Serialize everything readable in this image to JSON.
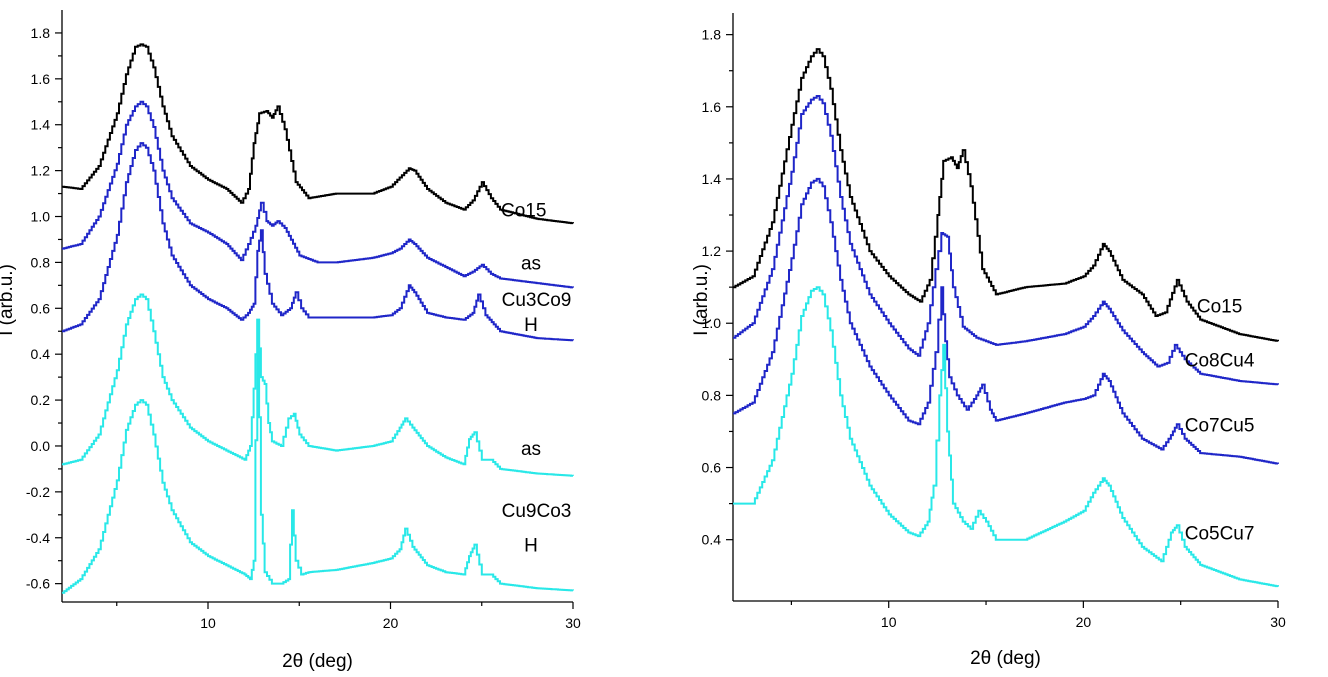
{
  "chart_data": [
    {
      "type": "line",
      "xlabel": "2θ (deg)",
      "ylabel": "I (arb.u.)",
      "xlim": [
        2,
        30
      ],
      "ylim": [
        -0.68,
        1.9
      ],
      "x_ticks": [
        "10",
        "20",
        "30"
      ],
      "y_ticks": [
        "-0.6",
        "-0.4",
        "-0.2",
        "0.0",
        "0.2",
        "0.4",
        "0.6",
        "0.8",
        "1.0",
        "1.2",
        "1.4",
        "1.6",
        "1.8"
      ],
      "grid": false,
      "annotations": [
        {
          "text": "Co15",
          "x": 27.3,
          "y": 1.0
        },
        {
          "text": "as",
          "x": 27.7,
          "y": 0.77
        },
        {
          "text": "Cu3Co9",
          "x": 28.0,
          "y": 0.61
        },
        {
          "text": "H",
          "x": 27.7,
          "y": 0.5
        },
        {
          "text": "as",
          "x": 27.7,
          "y": -0.04
        },
        {
          "text": "Cu9Co3",
          "x": 28.0,
          "y": -0.31
        },
        {
          "text": "H",
          "x": 27.7,
          "y": -0.46
        }
      ],
      "series": [
        {
          "color": "#000000",
          "x": [
            2,
            3,
            4,
            5,
            5.5,
            6,
            6.3,
            6.6,
            7,
            7.5,
            8,
            9,
            10,
            11,
            11.8,
            12.2,
            12.5,
            12.8,
            13.2,
            13.5,
            13.8,
            14.2,
            14.8,
            15.5,
            17,
            19,
            20,
            20.5,
            21,
            21.3,
            22,
            23,
            24,
            24.5,
            25,
            25.5,
            26,
            28,
            30
          ],
          "values": [
            1.13,
            1.12,
            1.22,
            1.45,
            1.62,
            1.74,
            1.75,
            1.74,
            1.65,
            1.48,
            1.35,
            1.22,
            1.16,
            1.12,
            1.06,
            1.12,
            1.32,
            1.45,
            1.46,
            1.43,
            1.48,
            1.38,
            1.15,
            1.08,
            1.1,
            1.1,
            1.13,
            1.17,
            1.21,
            1.2,
            1.12,
            1.06,
            1.03,
            1.07,
            1.15,
            1.08,
            1.03,
            0.99,
            0.97
          ]
        },
        {
          "color": "#1f26c8",
          "x": [
            2,
            3,
            4,
            5,
            5.5,
            6,
            6.3,
            6.6,
            7,
            7.5,
            8,
            9,
            10,
            11,
            11.8,
            12.2,
            12.6,
            12.9,
            13.2,
            13.5,
            13.8,
            14.2,
            15,
            16,
            17,
            19,
            20,
            20.5,
            21,
            21.3,
            22,
            23,
            24,
            24.5,
            25,
            25.5,
            26,
            28,
            30
          ],
          "values": [
            0.86,
            0.88,
            1.0,
            1.23,
            1.4,
            1.48,
            1.5,
            1.48,
            1.39,
            1.2,
            1.08,
            0.97,
            0.93,
            0.88,
            0.81,
            0.88,
            0.96,
            1.06,
            0.98,
            0.96,
            0.98,
            0.95,
            0.83,
            0.8,
            0.8,
            0.82,
            0.84,
            0.86,
            0.9,
            0.88,
            0.82,
            0.78,
            0.74,
            0.76,
            0.79,
            0.75,
            0.73,
            0.71,
            0.69
          ]
        },
        {
          "color": "#1f26c8",
          "x": [
            2,
            3,
            4,
            5,
            5.5,
            6,
            6.3,
            6.6,
            7,
            7.5,
            8,
            9,
            10,
            11,
            11.8,
            12.2,
            12.5,
            12.7,
            12.9,
            13.1,
            13.5,
            14,
            14.5,
            14.8,
            15.1,
            15.5,
            17,
            19,
            20,
            20.5,
            21,
            21.3,
            22,
            23,
            24,
            24.5,
            24.8,
            25.2,
            26,
            28,
            30
          ],
          "values": [
            0.5,
            0.53,
            0.64,
            0.92,
            1.15,
            1.29,
            1.32,
            1.3,
            1.2,
            0.97,
            0.83,
            0.7,
            0.64,
            0.6,
            0.55,
            0.58,
            0.62,
            0.85,
            0.94,
            0.75,
            0.62,
            0.57,
            0.6,
            0.67,
            0.6,
            0.56,
            0.56,
            0.56,
            0.57,
            0.6,
            0.7,
            0.67,
            0.58,
            0.56,
            0.55,
            0.58,
            0.66,
            0.57,
            0.5,
            0.47,
            0.46
          ]
        },
        {
          "color": "#29e8e8",
          "x": [
            2,
            3,
            4,
            5,
            5.5,
            6,
            6.3,
            6.6,
            7,
            7.5,
            8,
            9,
            10,
            11,
            12,
            12.3,
            12.5,
            12.7,
            12.9,
            13.1,
            13.3,
            13.5,
            14,
            14.4,
            14.7,
            15,
            15.5,
            17,
            19,
            20,
            20.5,
            20.8,
            21.2,
            22,
            23,
            24,
            24.3,
            24.6,
            25,
            25.5,
            26,
            28,
            30
          ],
          "values": [
            -0.08,
            -0.06,
            0.05,
            0.33,
            0.53,
            0.64,
            0.66,
            0.64,
            0.5,
            0.3,
            0.2,
            0.08,
            0.02,
            -0.02,
            -0.06,
            0.0,
            0.25,
            0.55,
            0.3,
            0.27,
            0.1,
            0.02,
            0.0,
            0.12,
            0.14,
            0.05,
            0.0,
            -0.02,
            0.0,
            0.02,
            0.08,
            0.12,
            0.08,
            0.0,
            -0.05,
            -0.08,
            0.03,
            0.06,
            -0.06,
            -0.06,
            -0.1,
            -0.12,
            -0.13
          ]
        },
        {
          "color": "#29e8e8",
          "x": [
            2,
            3,
            4,
            5,
            5.5,
            6,
            6.3,
            6.6,
            7,
            7.5,
            8,
            9,
            10,
            11,
            12,
            12.3,
            12.5,
            12.7,
            12.9,
            13.1,
            13.5,
            14,
            14.4,
            14.6,
            14.8,
            15.1,
            15.5,
            17,
            19,
            20,
            20.5,
            20.8,
            21.2,
            22,
            23,
            24,
            24.3,
            24.6,
            25,
            25.5,
            26,
            28,
            30
          ],
          "values": [
            -0.64,
            -0.58,
            -0.45,
            -0.15,
            0.07,
            0.18,
            0.2,
            0.18,
            0.05,
            -0.16,
            -0.28,
            -0.42,
            -0.48,
            -0.52,
            -0.56,
            -0.58,
            -0.5,
            0.55,
            -0.3,
            -0.55,
            -0.6,
            -0.6,
            -0.58,
            -0.28,
            -0.5,
            -0.56,
            -0.55,
            -0.54,
            -0.51,
            -0.49,
            -0.45,
            -0.36,
            -0.44,
            -0.52,
            -0.55,
            -0.56,
            -0.48,
            -0.43,
            -0.56,
            -0.56,
            -0.6,
            -0.62,
            -0.63
          ]
        }
      ]
    },
    {
      "type": "line",
      "xlabel": "2θ (deg)",
      "ylabel": "I (arb.u.)",
      "xlim": [
        2,
        30
      ],
      "ylim": [
        0.23,
        1.86
      ],
      "x_ticks": [
        "10",
        "20",
        "30"
      ],
      "y_ticks": [
        "0.4",
        "0.6",
        "0.8",
        "1.0",
        "1.2",
        "1.4",
        "1.6",
        "1.8"
      ],
      "grid": false,
      "annotations": [
        {
          "text": "Co15",
          "x": 27.0,
          "y": 1.03
        },
        {
          "text": "Co8Cu4",
          "x": 27.0,
          "y": 0.88
        },
        {
          "text": "Co7Cu5",
          "x": 27.0,
          "y": 0.7
        },
        {
          "text": "Co5Cu7",
          "x": 27.0,
          "y": 0.4
        }
      ],
      "series": [
        {
          "color": "#000000",
          "x": [
            2,
            3,
            4,
            5,
            5.5,
            6,
            6.3,
            6.6,
            7,
            7.5,
            8,
            9,
            10,
            11,
            11.6,
            12.1,
            12.5,
            12.8,
            13.2,
            13.5,
            13.8,
            14.2,
            14.8,
            15.5,
            17,
            19,
            20,
            20.5,
            21,
            21.3,
            22,
            23,
            23.7,
            24.2,
            24.8,
            25.3,
            26,
            28,
            30
          ],
          "values": [
            1.1,
            1.13,
            1.28,
            1.55,
            1.68,
            1.74,
            1.76,
            1.74,
            1.65,
            1.48,
            1.35,
            1.2,
            1.13,
            1.08,
            1.06,
            1.12,
            1.3,
            1.45,
            1.46,
            1.43,
            1.48,
            1.38,
            1.15,
            1.08,
            1.1,
            1.11,
            1.13,
            1.16,
            1.22,
            1.2,
            1.12,
            1.08,
            1.02,
            1.03,
            1.12,
            1.06,
            1.01,
            0.97,
            0.95
          ]
        },
        {
          "color": "#1f26c8",
          "x": [
            2,
            3,
            4,
            5,
            5.5,
            6,
            6.3,
            6.6,
            7,
            7.5,
            8,
            9,
            10,
            11,
            11.5,
            12,
            12.4,
            12.7,
            13,
            13.3,
            13.8,
            14.5,
            15.5,
            17,
            19,
            20,
            20.5,
            21,
            21.3,
            22,
            23,
            23.8,
            24.3,
            24.7,
            25.2,
            26,
            28,
            30
          ],
          "values": [
            0.96,
            1.0,
            1.15,
            1.42,
            1.58,
            1.62,
            1.63,
            1.61,
            1.52,
            1.35,
            1.22,
            1.08,
            1.0,
            0.93,
            0.91,
            1.0,
            1.15,
            1.25,
            1.24,
            1.1,
            0.99,
            0.96,
            0.94,
            0.95,
            0.97,
            0.99,
            1.02,
            1.06,
            1.04,
            0.98,
            0.92,
            0.88,
            0.89,
            0.94,
            0.9,
            0.86,
            0.84,
            0.83
          ]
        },
        {
          "color": "#1f26c8",
          "x": [
            2,
            3,
            4,
            5,
            5.5,
            6,
            6.3,
            6.6,
            7,
            7.5,
            8,
            9,
            10,
            11,
            11.5,
            12,
            12.4,
            12.7,
            12.9,
            13.1,
            13.5,
            14,
            14.5,
            14.8,
            15.2,
            15.5,
            17,
            19,
            20,
            20.5,
            21,
            21.3,
            22,
            23,
            24,
            24.5,
            24.8,
            25.2,
            26,
            28,
            30
          ],
          "values": [
            0.75,
            0.78,
            0.92,
            1.18,
            1.33,
            1.39,
            1.4,
            1.38,
            1.28,
            1.12,
            1.0,
            0.88,
            0.8,
            0.73,
            0.72,
            0.78,
            0.92,
            1.1,
            0.95,
            0.85,
            0.8,
            0.76,
            0.8,
            0.83,
            0.76,
            0.73,
            0.75,
            0.78,
            0.79,
            0.8,
            0.86,
            0.84,
            0.75,
            0.68,
            0.65,
            0.69,
            0.72,
            0.68,
            0.64,
            0.63,
            0.61
          ]
        },
        {
          "color": "#29e8e8",
          "x": [
            2,
            3,
            4,
            5,
            5.5,
            6,
            6.3,
            6.6,
            7,
            7.5,
            8,
            9,
            10,
            11,
            11.5,
            12,
            12.3,
            12.6,
            12.8,
            13,
            13.3,
            13.8,
            14.2,
            14.6,
            15,
            15.5,
            17,
            19,
            20,
            20.5,
            21,
            21.3,
            22,
            23,
            24,
            24.5,
            24.8,
            25.2,
            26,
            28,
            30
          ],
          "values": [
            0.5,
            0.5,
            0.62,
            0.86,
            1.02,
            1.09,
            1.1,
            1.08,
            0.98,
            0.8,
            0.68,
            0.55,
            0.47,
            0.42,
            0.41,
            0.45,
            0.55,
            0.8,
            0.94,
            0.7,
            0.5,
            0.45,
            0.43,
            0.48,
            0.45,
            0.4,
            0.4,
            0.45,
            0.48,
            0.53,
            0.57,
            0.55,
            0.46,
            0.38,
            0.34,
            0.42,
            0.44,
            0.38,
            0.33,
            0.29,
            0.27
          ]
        }
      ]
    }
  ]
}
